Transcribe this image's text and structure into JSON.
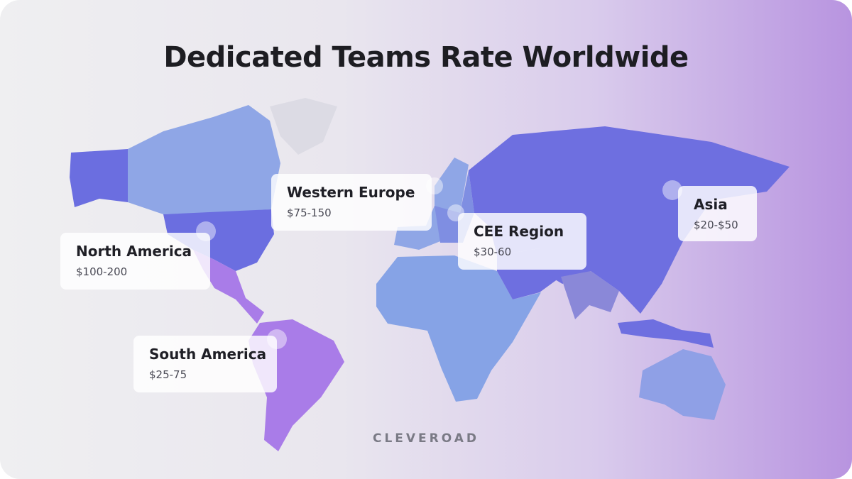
{
  "title": "Dedicated Teams Rate Worldwide",
  "regions": [
    {
      "name": "Western Europe",
      "rate": "$75-150"
    },
    {
      "name": "CEE Region",
      "rate": "$30-60"
    },
    {
      "name": "Asia",
      "rate": "$20-$50"
    },
    {
      "name": "North America",
      "rate": "$100-200"
    },
    {
      "name": "South America",
      "rate": "$25-75"
    }
  ],
  "brand": "CLEVEROAD"
}
